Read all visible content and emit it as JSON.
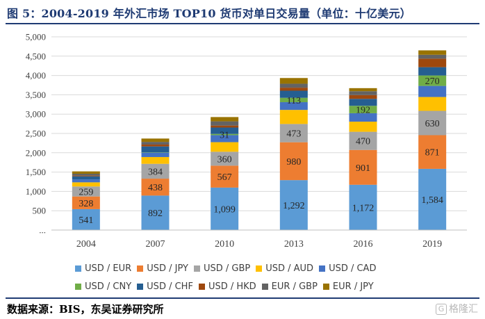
{
  "header": {
    "title": "图 5：2004-2019 年外汇市场 TOP10 货币对单日交易量（单位：十亿美元）"
  },
  "footer": {
    "source": "数据来源：BIS，东吴证券研究所",
    "watermark": "格隆汇"
  },
  "chart_data": {
    "type": "bar",
    "stacked": true,
    "title": "2004-2019 年外汇市场 TOP10 货币对单日交易量（单位：十亿美元）",
    "xlabel": "",
    "ylabel": "",
    "ylim": [
      0,
      5000
    ],
    "yticks": [
      0,
      500,
      1000,
      1500,
      2000,
      2500,
      3000,
      3500,
      4000,
      4500,
      5000
    ],
    "ytick_labels": [
      "...",
      "500",
      "1,000",
      "1,500",
      "2,000",
      "2,500",
      "3,000",
      "3,500",
      "4,000",
      "4,500",
      "5,000"
    ],
    "categories": [
      "2004",
      "2007",
      "2010",
      "2013",
      "2016",
      "2019"
    ],
    "legend_position": "bottom",
    "series": [
      {
        "name": "USD / EUR",
        "color": "#5b9bd5",
        "values": [
          541,
          892,
          1099,
          1292,
          1172,
          1584
        ],
        "labels": [
          "541",
          "892",
          "1,099",
          "1,292",
          "1,172",
          "1,584"
        ]
      },
      {
        "name": "USD / JPY",
        "color": "#ed7d31",
        "values": [
          328,
          438,
          567,
          980,
          901,
          871
        ],
        "labels": [
          "328",
          "438",
          "567",
          "980",
          "901",
          "871"
        ]
      },
      {
        "name": "USD / GBP",
        "color": "#a5a5a5",
        "values": [
          259,
          384,
          360,
          473,
          470,
          630
        ],
        "labels": [
          "259",
          "384",
          "360",
          "473",
          "470",
          "630"
        ]
      },
      {
        "name": "USD / AUD",
        "color": "#ffc000",
        "values": [
          107,
          175,
          248,
          364,
          262,
          358
        ],
        "labels": [
          "",
          "",
          "",
          "",
          "",
          ""
        ]
      },
      {
        "name": "USD / CAD",
        "color": "#4472c4",
        "values": [
          77,
          115,
          182,
          200,
          218,
          287
        ],
        "labels": [
          "",
          "",
          "",
          "",
          "",
          ""
        ]
      },
      {
        "name": "USD / CNY",
        "color": "#70ad47",
        "values": [
          1,
          9,
          31,
          113,
          192,
          270
        ],
        "labels": [
          "",
          "",
          "31",
          "113",
          "192",
          "270"
        ]
      },
      {
        "name": "USD / CHF",
        "color": "#255e91",
        "values": [
          78,
          151,
          166,
          184,
          180,
          215
        ],
        "labels": [
          "",
          "",
          "",
          "",
          "",
          ""
        ]
      },
      {
        "name": "USD / HKD",
        "color": "#9e480e",
        "values": [
          19,
          49,
          51,
          79,
          98,
          221
        ],
        "labels": [
          "",
          "",
          "",
          "",
          "",
          ""
        ]
      },
      {
        "name": "EUR / GBP",
        "color": "#636363",
        "values": [
          47,
          69,
          109,
          102,
          100,
          100
        ],
        "labels": [
          "",
          "",
          "",
          "",
          "",
          ""
        ]
      },
      {
        "name": "EUR / JPY",
        "color": "#997300",
        "values": [
          61,
          86,
          111,
          147,
          79,
          114
        ],
        "labels": [
          "",
          "",
          "",
          "",
          "",
          ""
        ]
      }
    ]
  }
}
